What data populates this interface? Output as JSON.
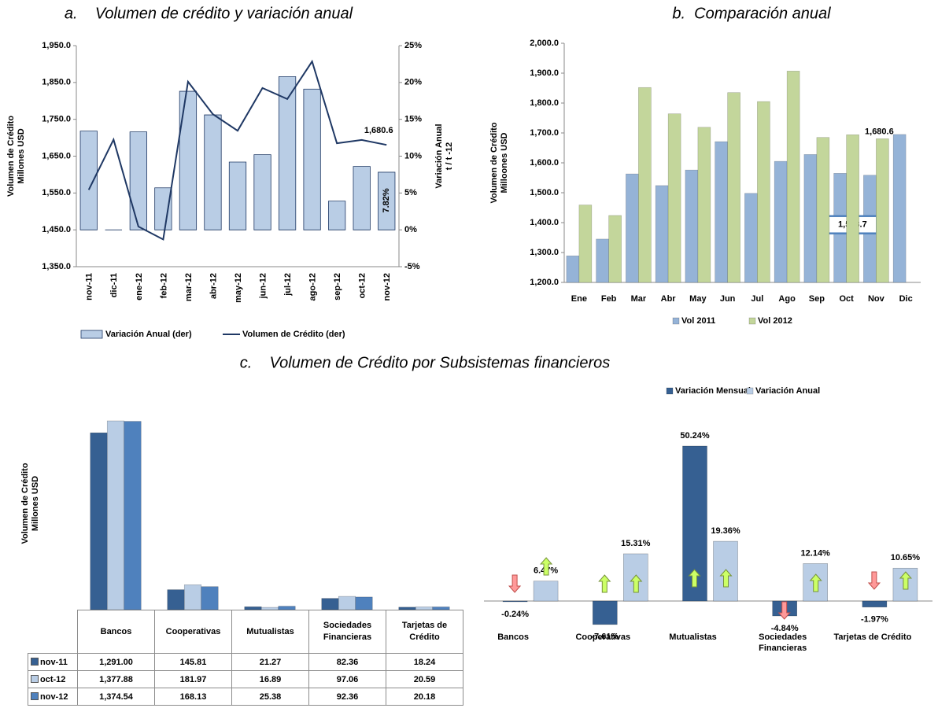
{
  "chart_data": [
    {
      "type": "combo",
      "title": "a.    Volumen de crédito y variación anual",
      "categories": [
        "nov-11",
        "dic-11",
        "ene-12",
        "feb-12",
        "mar-12",
        "abr-12",
        "may-12",
        "jun-12",
        "jul-12",
        "ago-12",
        "sep-12",
        "oct-12",
        "nov-12"
      ],
      "series": [
        {
          "name": "Variación Anual (der)",
          "type": "bar",
          "axis": "y2",
          "color": "#b9cde5",
          "values": [
            13.4,
            0,
            13.3,
            5.7,
            18.8,
            15.6,
            9.2,
            10.2,
            20.8,
            19.1,
            3.9,
            8.6,
            7.82
          ],
          "value_labels": [
            null,
            null,
            null,
            null,
            null,
            null,
            null,
            null,
            null,
            null,
            null,
            null,
            "7.82%"
          ]
        },
        {
          "name": "Volumen de Crédito (der)",
          "type": "line",
          "color": "#1f3864",
          "values": [
            1558.7,
            1695,
            1459,
            1424,
            1852,
            1764,
            1719,
            1835,
            1805,
            1907,
            1685,
            1694,
            1680.6
          ],
          "value_labels": [
            null,
            null,
            null,
            null,
            null,
            null,
            null,
            null,
            null,
            null,
            null,
            null,
            "1,680.6"
          ]
        }
      ],
      "y_label": [
        "Volumen de Crédito",
        "Millones USD"
      ],
      "y2_label": [
        "Variación Anual",
        "t / t -12"
      ],
      "ylim": [
        1350,
        1950
      ],
      "yticks": [
        {
          "value": 1350,
          "label": "1,350.0"
        },
        {
          "value": 1450,
          "label": "1,450.0"
        },
        {
          "value": 1550,
          "label": "1,550.0"
        },
        {
          "value": 1650,
          "label": "1,650.0"
        },
        {
          "value": 1750,
          "label": "1,750.0"
        },
        {
          "value": 1850,
          "label": "1,850.0"
        },
        {
          "value": 1950,
          "label": "1,950.0"
        }
      ],
      "y2lim": [
        -5,
        25
      ],
      "y2ticks": [
        {
          "value": -5,
          "label": "-5%"
        },
        {
          "value": 0,
          "label": "0%"
        },
        {
          "value": 5,
          "label": "5%"
        },
        {
          "value": 10,
          "label": "10%"
        },
        {
          "value": 15,
          "label": "15%"
        },
        {
          "value": 20,
          "label": "20%"
        },
        {
          "value": 25,
          "label": "25%"
        }
      ],
      "legend": "bottom"
    },
    {
      "type": "bar",
      "title": "b.  Comparación anual",
      "categories": [
        "Ene",
        "Feb",
        "Mar",
        "Abr",
        "May",
        "Jun",
        "Jul",
        "Ago",
        "Sep",
        "Oct",
        "Nov",
        "Dic"
      ],
      "series": [
        {
          "name": "Vol 2011",
          "color": "#95b3d7",
          "label_box": true,
          "values": [
            1289,
            1345,
            1563,
            1524,
            1576,
            1671,
            1498,
            1605,
            1628,
            1565,
            1558.7,
            1695
          ],
          "value_labels": [
            null,
            null,
            null,
            null,
            null,
            null,
            null,
            null,
            null,
            null,
            "1,558.7",
            null
          ]
        },
        {
          "name": "Vol 2012",
          "color": "#c3d69b",
          "values": [
            1459,
            1424,
            1852,
            1764,
            1719,
            1835,
            1805,
            1907,
            1685,
            1694,
            1680.6,
            null
          ],
          "value_labels": [
            null,
            null,
            null,
            null,
            null,
            null,
            null,
            null,
            null,
            null,
            "1,680.6",
            null
          ]
        }
      ],
      "y_label": [
        "Volumen de Crédito",
        "Milloones USD"
      ],
      "ylim": [
        1200,
        2000
      ],
      "yticks": [
        {
          "value": 1200,
          "label": "1,200.0"
        },
        {
          "value": 1300,
          "label": "1,300.0"
        },
        {
          "value": 1400,
          "label": "1,400.0"
        },
        {
          "value": 1500,
          "label": "1,500.0"
        },
        {
          "value": 1600,
          "label": "1,600.0"
        },
        {
          "value": 1700,
          "label": "1,700.0"
        },
        {
          "value": 1800,
          "label": "1,800.0"
        },
        {
          "value": 1900,
          "label": "1,900.0"
        },
        {
          "value": 2000,
          "label": "2,000.0"
        }
      ],
      "legend": "bottom"
    },
    {
      "type": "bar",
      "title": "c.    Volumen de Crédito por Subsistemas financieros",
      "data_table": true,
      "categories": [
        "Bancos",
        "Cooperativas",
        "Mutualistas",
        "Sociedades Financieras",
        "Tarjetas de Crédito"
      ],
      "series": [
        {
          "name": "nov-11",
          "color": "#366092",
          "values": [
            1291.0,
            145.81,
            21.27,
            82.36,
            18.24
          ],
          "value_labels": [
            "1,291.00",
            "145.81",
            "21.27",
            "82.36",
            "18.24"
          ]
        },
        {
          "name": "oct-12",
          "color": "#b9cde5",
          "values": [
            1377.88,
            181.97,
            16.89,
            97.06,
            20.59
          ],
          "value_labels": [
            "1,377.88",
            "181.97",
            "16.89",
            "97.06",
            "20.59"
          ]
        },
        {
          "name": "nov-12",
          "color": "#4f81bd",
          "values": [
            1374.54,
            168.13,
            25.38,
            92.36,
            20.18
          ],
          "value_labels": [
            "1,374.54",
            "168.13",
            "25.38",
            "92.36",
            "20.18"
          ]
        }
      ],
      "y_label": [
        "Volumen de Crédito",
        "Millones USD"
      ]
    },
    {
      "type": "bar",
      "legend": "top",
      "categories": [
        "Bancos",
        "Cooperativas",
        "Mutualistas",
        "Sociedades Financieras",
        "Tarjetas de Crédito"
      ],
      "series": [
        {
          "name": "Variación Mensual",
          "color": "#366092",
          "values": [
            -0.24,
            -7.61,
            50.24,
            -4.84,
            -1.97
          ],
          "value_labels": [
            "-0.24%",
            "-7.61%",
            "50.24%",
            "-4.84%",
            "-1.97%"
          ]
        },
        {
          "name": "Variación Anual",
          "color": "#b9cde5",
          "values": [
            6.47,
            15.31,
            19.36,
            12.14,
            10.65
          ],
          "value_labels": [
            "6.47%",
            "15.31%",
            "19.36%",
            "12.14%",
            "10.65%"
          ]
        }
      ]
    }
  ]
}
